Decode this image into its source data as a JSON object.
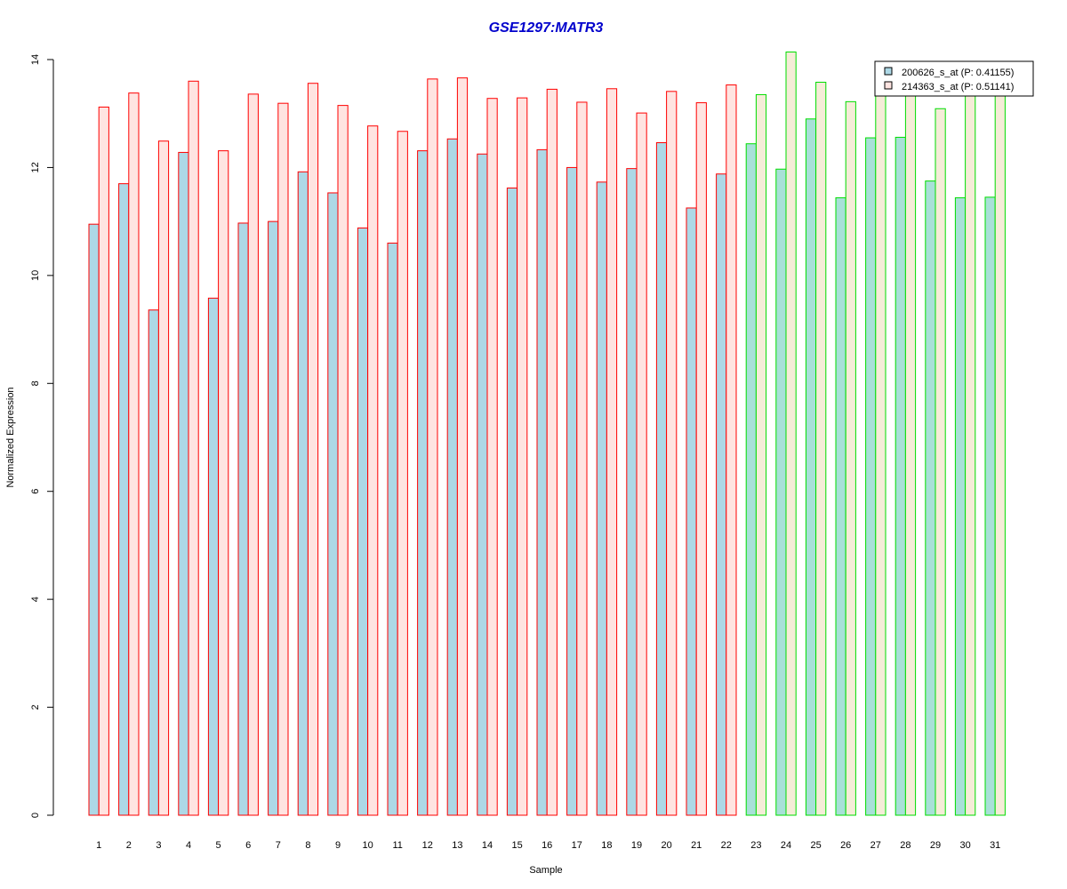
{
  "chart_data": {
    "type": "bar",
    "title": "GSE1297:MATR3",
    "xlabel": "Sample",
    "ylabel": "Normalized Expression",
    "ylim": [
      0,
      14
    ],
    "yticks": [
      0,
      2,
      4,
      6,
      8,
      10,
      12,
      14
    ],
    "grid": false,
    "legend_position": "top-right",
    "categories": [
      "1",
      "2",
      "3",
      "4",
      "5",
      "6",
      "7",
      "8",
      "9",
      "10",
      "11",
      "12",
      "13",
      "14",
      "15",
      "16",
      "17",
      "18",
      "19",
      "20",
      "21",
      "22",
      "23",
      "24",
      "25",
      "26",
      "27",
      "28",
      "29",
      "30",
      "31"
    ],
    "group_border_colors": [
      "#ff0000",
      "#ff0000",
      "#ff0000",
      "#ff0000",
      "#ff0000",
      "#ff0000",
      "#ff0000",
      "#ff0000",
      "#ff0000",
      "#ff0000",
      "#ff0000",
      "#ff0000",
      "#ff0000",
      "#ff0000",
      "#ff0000",
      "#ff0000",
      "#ff0000",
      "#ff0000",
      "#ff0000",
      "#ff0000",
      "#ff0000",
      "#ff0000",
      "#00dd00",
      "#00dd00",
      "#00dd00",
      "#00dd00",
      "#00dd00",
      "#00dd00",
      "#00dd00",
      "#00dd00",
      "#00dd00"
    ],
    "series": [
      {
        "name": "200626_s_at (P: 0.41155)",
        "fill_colors": [
          "#add8e6",
          "#a8e0d8"
        ],
        "values": [
          10.95,
          11.7,
          9.36,
          12.28,
          9.58,
          10.97,
          11.0,
          11.92,
          11.53,
          10.88,
          10.6,
          12.31,
          12.53,
          12.25,
          11.62,
          12.33,
          12.0,
          11.73,
          11.98,
          12.46,
          11.25,
          11.88,
          12.44,
          11.97,
          12.9,
          11.44,
          12.55,
          12.56,
          11.75,
          11.44,
          11.45
        ]
      },
      {
        "name": "214363_s_at (P: 0.51141)",
        "fill_colors": [
          "#ffe4e1",
          "#f5ecd8"
        ],
        "values": [
          13.12,
          13.38,
          12.49,
          13.6,
          12.31,
          13.36,
          13.19,
          13.56,
          13.15,
          12.77,
          12.67,
          13.64,
          13.66,
          13.28,
          13.29,
          13.45,
          13.21,
          13.46,
          13.01,
          13.41,
          13.2,
          13.53,
          13.35,
          14.14,
          13.58,
          13.22,
          13.35,
          13.42,
          13.09,
          13.35,
          13.4
        ]
      }
    ]
  }
}
